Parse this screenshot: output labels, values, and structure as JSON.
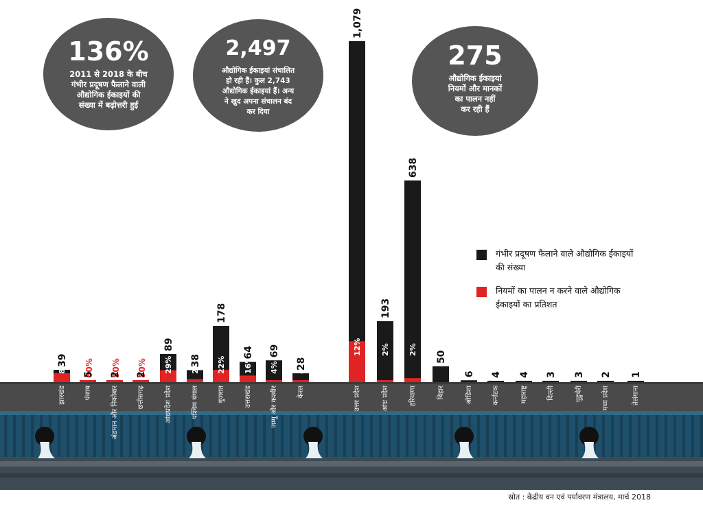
{
  "stats": [
    {
      "value": "136%",
      "lines": [
        "2011 से 2018 के बीच",
        "गंभीर प्रदूषण फैलाने वाली",
        "औद्योगिक ईकाइयों की",
        "संख्या में बढ़ोत्तरी हुई"
      ]
    },
    {
      "value": "2,497",
      "lines": [
        "औद्योगिक ईकाइयां संचालित",
        "हो रही हैं। कुल 2,743",
        "औद्योगिक ईकाइयां हैं। अन्य",
        "ने खुद अपना संचालन बंद",
        "कर दिया"
      ]
    },
    {
      "value": "275",
      "lines": [
        "औद्योगिक ईकाइयां",
        "नियमों और मानकों",
        "का पालन नहीं",
        "कर रही हैं"
      ]
    }
  ],
  "legend": [
    {
      "lines": [
        "गंभीर प्रदूषण फैलाने वाले औद्योगिक ईकाइयों",
        "की संख्या"
      ],
      "color": "#1a1a1a"
    },
    {
      "lines": [
        "नियमों का पालन न करने वाले औद्योगिक",
        "ईकाइयों का प्रतिशत"
      ],
      "color": "#e02424"
    }
  ],
  "source": "स्रोत : केंद्रीय वन एवं पर्यावरण मंत्रालय, मार्च 2018",
  "colors": {
    "count_bar": "#1a1a1a",
    "percent_bar": "#e02424",
    "bubble": "#555555",
    "band": "#4a4a4a",
    "wall": "#1e4f6b"
  },
  "chart_data": {
    "type": "bar",
    "categories": [
      "झारखंड",
      "पंजाब",
      "अंडमान और निकोबार",
      "छत्तीसगढ़",
      "आंध्रप्रदेश प्रदेश",
      "पश्चिम बंगाल",
      "गुजरात",
      "उत्तराखंड",
      "जम्मू और कश्मीर",
      "केरल",
      "उत्तर प्रदेश",
      "आंध्र प्रदेश",
      "हरियाणा",
      "बिहार",
      "ओडिशा",
      "कर्नाटक",
      "महाराष्ट्र",
      "दिल्ली",
      "पुडुचेरी",
      "मध्य प्रदेश",
      "तेलंगाना"
    ],
    "series": [
      {
        "name": "गंभीर प्रदूषण फैलाने वाले औद्योगिक ईकाइयों की संख्या",
        "values": [
          39,
          5,
          2,
          2,
          89,
          38,
          178,
          64,
          69,
          28,
          1079,
          193,
          638,
          50,
          6,
          4,
          4,
          3,
          3,
          2,
          1
        ]
      },
      {
        "name": "नियमों का पालन न करने वाले औद्योगिक ईकाइयों का प्रतिशत",
        "values": [
          87,
          60,
          50,
          50,
          29,
          29,
          22,
          16,
          4,
          4,
          12,
          2,
          2,
          null,
          null,
          null,
          null,
          null,
          null,
          null,
          null
        ]
      }
    ],
    "value_labels": [
      "39",
      "5",
      "2",
      "2",
      "89",
      "38",
      "178",
      "64",
      "69",
      "28",
      "1,079",
      "193",
      "638",
      "50",
      "6",
      "4",
      "4",
      "3",
      "3",
      "2",
      "1"
    ],
    "percent_labels": [
      "87%",
      "60%",
      "50%",
      "50%",
      "29%",
      "29%",
      "22%",
      "16%",
      "4%",
      "4%",
      "12%",
      "2%",
      "2%",
      "",
      "",
      "",
      "",
      "",
      "",
      "",
      ""
    ]
  }
}
